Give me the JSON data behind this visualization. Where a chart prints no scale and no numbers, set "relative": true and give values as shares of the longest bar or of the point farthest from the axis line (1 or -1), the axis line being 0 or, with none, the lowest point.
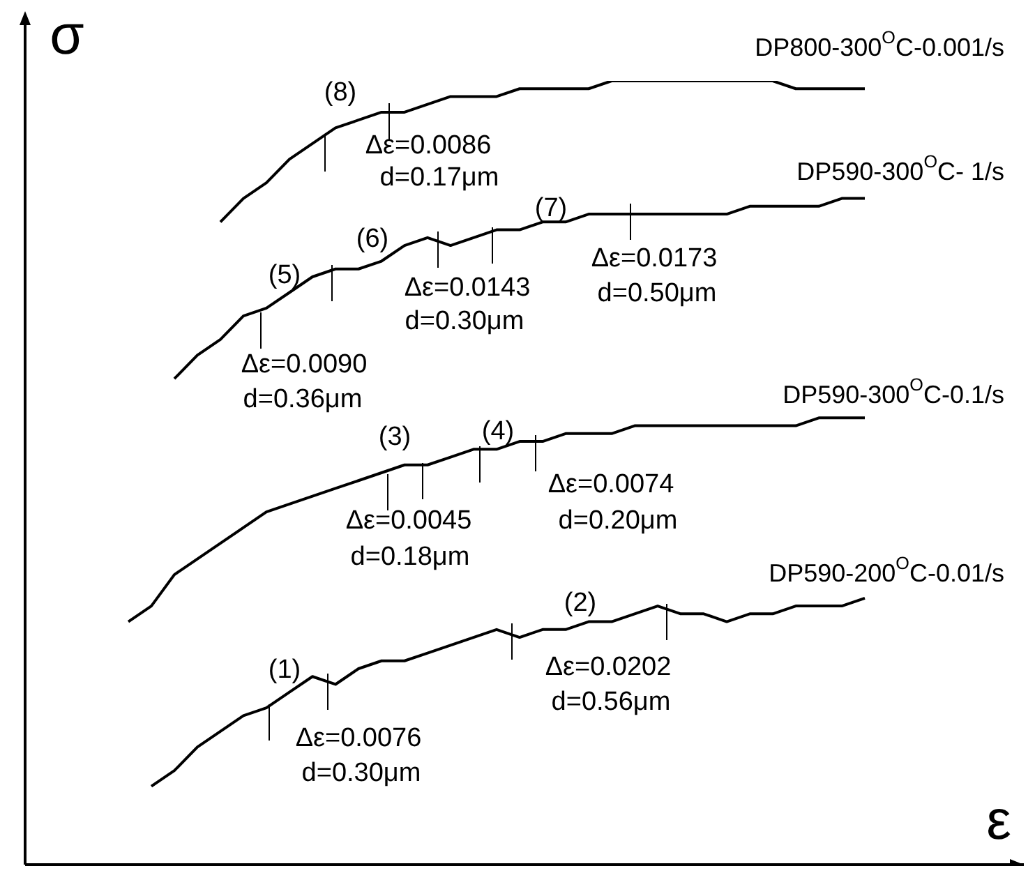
{
  "chart_data": {
    "type": "line",
    "relative": true,
    "xlabel": "ε",
    "ylabel": "σ",
    "marker": "none",
    "line_style": "solid",
    "legend": false,
    "categories": [
      null,
      null,
      null,
      null,
      null,
      null,
      null,
      null,
      null,
      null,
      null,
      null,
      null,
      null,
      null,
      null,
      null,
      null,
      null,
      null,
      null,
      null,
      null,
      null,
      null,
      null,
      null,
      null,
      null,
      null,
      null,
      null,
      null
    ],
    "series": [
      {
        "name": "DP800-300$^{O}$C-0.001/s",
        "color": "#000000",
        "values": [
          null,
          null,
          null,
          null,
          0.82,
          0.85,
          0.87,
          0.9,
          0.92,
          0.94,
          0.95,
          0.96,
          0.96,
          0.97,
          0.98,
          0.98,
          0.98,
          0.99,
          0.99,
          0.99,
          0.99,
          1.0,
          1.0,
          1.0,
          1.0,
          1.0,
          1.0,
          1.0,
          1.0,
          0.99,
          0.99,
          0.99,
          0.99
        ]
      },
      {
        "name": "DP590-300$^{O}$C- 1/s",
        "color": "#000000",
        "values": [
          null,
          null,
          0.62,
          0.65,
          0.67,
          0.7,
          0.71,
          0.73,
          0.75,
          0.76,
          0.76,
          0.77,
          0.79,
          0.8,
          0.79,
          0.8,
          0.81,
          0.81,
          0.82,
          0.82,
          0.83,
          0.83,
          0.83,
          0.83,
          0.83,
          0.83,
          0.83,
          0.84,
          0.84,
          0.84,
          0.84,
          0.85,
          0.85
        ]
      },
      {
        "name": "DP590-300$^{O}$C-0.1/s",
        "color": "#000000",
        "values": [
          0.31,
          0.33,
          0.37,
          0.39,
          0.41,
          0.43,
          0.45,
          0.46,
          0.47,
          0.48,
          0.49,
          0.5,
          0.51,
          0.51,
          0.52,
          0.53,
          0.53,
          0.54,
          0.54,
          0.55,
          0.55,
          0.55,
          0.56,
          0.56,
          0.56,
          0.56,
          0.56,
          0.56,
          0.56,
          0.56,
          0.57,
          0.57,
          0.57
        ]
      },
      {
        "name": "DP590-200$^{O}$C-0.01/s",
        "color": "#000000",
        "values": [
          null,
          0.1,
          0.12,
          0.15,
          0.17,
          0.19,
          0.2,
          0.22,
          0.24,
          0.23,
          0.25,
          0.26,
          0.26,
          0.27,
          0.28,
          0.29,
          0.3,
          0.29,
          0.3,
          0.3,
          0.31,
          0.31,
          0.32,
          0.33,
          0.32,
          0.32,
          0.31,
          0.32,
          0.32,
          0.33,
          0.33,
          0.33,
          0.34
        ]
      }
    ],
    "annotations": [
      "(8)",
      "Δε=0.0086",
      "d=0.17μm",
      "(5)",
      "(6)",
      "(7)",
      "Δε=0.0143",
      "d=0.30μm",
      "Δε=0.0173",
      "d=0.50μm",
      "Δε=0.0090",
      "d=0.36μm",
      "(3)",
      "(4)",
      "Δε=0.0045",
      "d=0.18μm",
      "Δε=0.0074",
      "d=0.20μm",
      "(1)",
      "(2)",
      "Δε=0.0076",
      "d=0.30μm",
      "Δε=0.0202",
      "d=0.56μm"
    ]
  }
}
